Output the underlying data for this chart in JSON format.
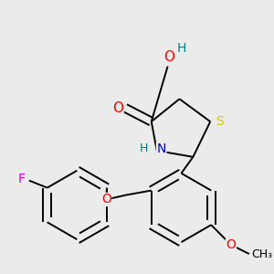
{
  "background_color": "#ebebeb",
  "atom_colors": {
    "C": "#000000",
    "H": "#008080",
    "O": "#ff0000",
    "N": "#0000cc",
    "S": "#cccc00",
    "F": "#cc00cc"
  },
  "bond_color": "#000000",
  "bond_width": 1.4,
  "figsize": [
    3.0,
    3.0
  ],
  "dpi": 100
}
